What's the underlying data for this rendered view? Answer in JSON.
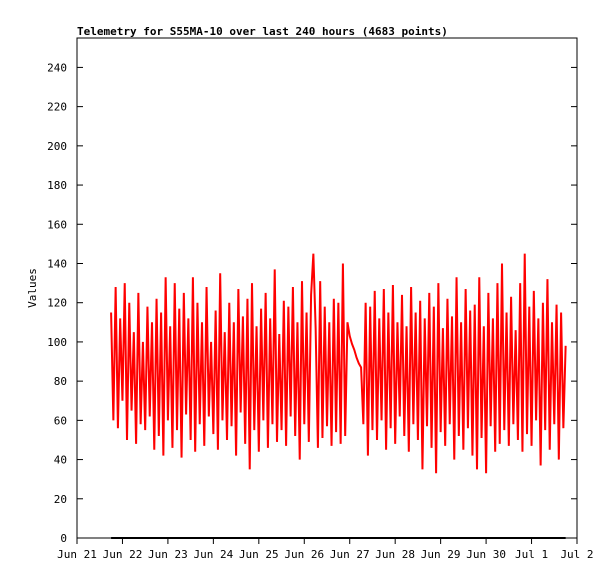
{
  "chart_data": {
    "type": "line",
    "title": "Telemetry for S55MA-10 over last 240 hours (4683 points)",
    "y_label": "Values",
    "xlim": [
      0,
      11
    ],
    "ylim": [
      0,
      255
    ],
    "xticks": [
      {
        "value": 0,
        "label": "Jun 21"
      },
      {
        "value": 1,
        "label": "Jun 22"
      },
      {
        "value": 2,
        "label": "Jun 23"
      },
      {
        "value": 3,
        "label": "Jun 24"
      },
      {
        "value": 4,
        "label": "Jun 25"
      },
      {
        "value": 5,
        "label": "Jun 26"
      },
      {
        "value": 6,
        "label": "Jun 27"
      },
      {
        "value": 7,
        "label": "Jun 28"
      },
      {
        "value": 8,
        "label": "Jun 29"
      },
      {
        "value": 9,
        "label": "Jun 30"
      },
      {
        "value": 10,
        "label": "Jul 1"
      },
      {
        "value": 11,
        "label": "Jul 2"
      }
    ],
    "yticks": [
      0,
      20,
      40,
      60,
      80,
      100,
      120,
      140,
      160,
      180,
      200,
      220,
      240
    ],
    "grid": false,
    "series": [
      {
        "color": "#ff0000",
        "x": [
          0.75,
          0.8,
          0.85,
          0.9,
          0.95,
          1,
          1.05,
          1.1,
          1.15,
          1.2,
          1.25,
          1.3,
          1.35,
          1.4,
          1.45,
          1.5,
          1.55,
          1.6,
          1.65,
          1.7,
          1.75,
          1.8,
          1.85,
          1.9,
          1.95,
          2,
          2.05,
          2.1,
          2.15,
          2.2,
          2.25,
          2.3,
          2.35,
          2.4,
          2.45,
          2.5,
          2.55,
          2.6,
          2.65,
          2.7,
          2.75,
          2.8,
          2.85,
          2.9,
          2.95,
          3,
          3.05,
          3.1,
          3.15,
          3.2,
          3.25,
          3.3,
          3.35,
          3.4,
          3.45,
          3.5,
          3.55,
          3.6,
          3.65,
          3.7,
          3.75,
          3.8,
          3.85,
          3.9,
          3.95,
          4,
          4.05,
          4.1,
          4.15,
          4.2,
          4.25,
          4.3,
          4.35,
          4.4,
          4.45,
          4.5,
          4.55,
          4.6,
          4.65,
          4.7,
          4.75,
          4.8,
          4.85,
          4.9,
          4.95,
          5,
          5.05,
          5.1,
          5.15,
          5.2,
          5.25,
          5.3,
          5.35,
          5.4,
          5.45,
          5.5,
          5.55,
          5.6,
          5.65,
          5.7,
          5.75,
          5.8,
          5.85,
          5.9,
          5.95,
          6,
          6.05,
          6.1,
          6.15,
          6.2,
          6.25,
          6.3,
          6.35,
          6.4,
          6.45,
          6.5,
          6.55,
          6.6,
          6.65,
          6.7,
          6.75,
          6.8,
          6.85,
          6.9,
          6.95,
          7,
          7.05,
          7.1,
          7.15,
          7.2,
          7.25,
          7.3,
          7.35,
          7.4,
          7.45,
          7.5,
          7.55,
          7.6,
          7.65,
          7.7,
          7.75,
          7.8,
          7.85,
          7.9,
          7.95,
          8,
          8.05,
          8.1,
          8.15,
          8.2,
          8.25,
          8.3,
          8.35,
          8.4,
          8.45,
          8.5,
          8.55,
          8.6,
          8.65,
          8.7,
          8.75,
          8.8,
          8.85,
          8.9,
          8.95,
          9,
          9.05,
          9.1,
          9.15,
          9.2,
          9.25,
          9.3,
          9.35,
          9.4,
          9.45,
          9.5,
          9.55,
          9.6,
          9.65,
          9.7,
          9.75,
          9.8,
          9.85,
          9.9,
          9.95,
          10,
          10.05,
          10.1,
          10.15,
          10.2,
          10.25,
          10.3,
          10.35,
          10.4,
          10.45,
          10.5,
          10.55,
          10.6,
          10.65,
          10.7,
          10.75
        ],
        "values": [
          115,
          60,
          128,
          56,
          112,
          70,
          130,
          50,
          120,
          65,
          105,
          48,
          125,
          58,
          100,
          55,
          118,
          62,
          110,
          45,
          122,
          52,
          115,
          42,
          133,
          60,
          108,
          46,
          130,
          55,
          117,
          41,
          125,
          63,
          112,
          50,
          133,
          44,
          120,
          58,
          110,
          47,
          128,
          62,
          100,
          53,
          116,
          45,
          135,
          60,
          105,
          50,
          120,
          57,
          110,
          42,
          127,
          64,
          113,
          48,
          122,
          35,
          130,
          55,
          108,
          44,
          117,
          60,
          125,
          46,
          112,
          58,
          137,
          49,
          104,
          55,
          121,
          47,
          118,
          62,
          128,
          52,
          110,
          40,
          131,
          58,
          115,
          49,
          124,
          145,
          107,
          46,
          131,
          51,
          118,
          57,
          110,
          47,
          122,
          54,
          120,
          48,
          140,
          52,
          110,
          103,
          99,
          96,
          92,
          89,
          87,
          58,
          120,
          42,
          118,
          55,
          126,
          50,
          112,
          60,
          127,
          45,
          115,
          56,
          129,
          48,
          110,
          62,
          124,
          52,
          108,
          44,
          128,
          58,
          115,
          50,
          121,
          35,
          112,
          57,
          125,
          46,
          118,
          33,
          130,
          54,
          107,
          47,
          122,
          58,
          113,
          40,
          133,
          52,
          110,
          45,
          127,
          56,
          116,
          42,
          119,
          35,
          133,
          51,
          108,
          33,
          125,
          57,
          112,
          44,
          130,
          48,
          140,
          55,
          115,
          47,
          123,
          58,
          106,
          50,
          130,
          44,
          145,
          53,
          118,
          47,
          126,
          60,
          112,
          37,
          120,
          55,
          132,
          45,
          110,
          58,
          119,
          40,
          115,
          56,
          98
        ]
      },
      {
        "color": "#000000",
        "x": [
          0.75,
          10.75
        ],
        "values": [
          0,
          0
        ]
      }
    ]
  }
}
